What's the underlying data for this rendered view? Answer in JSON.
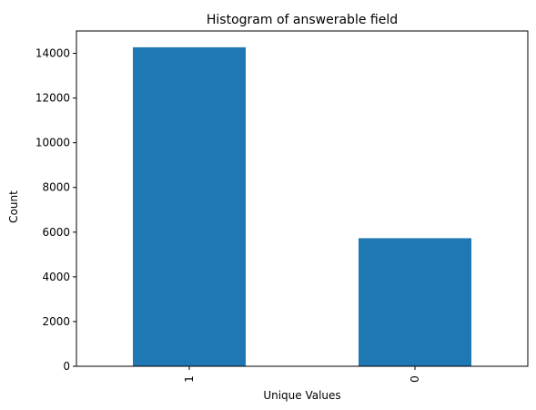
{
  "chart_data": {
    "type": "bar",
    "title": "Histogram of answerable field",
    "xlabel": "Unique Values",
    "ylabel": "Count",
    "categories": [
      "1",
      "0"
    ],
    "values": [
      14270,
      5730
    ],
    "ylim": [
      0,
      15000
    ],
    "yticks": [
      0,
      2000,
      4000,
      6000,
      8000,
      10000,
      12000,
      14000
    ],
    "grid": false,
    "bar_color": "#1f77b4"
  }
}
